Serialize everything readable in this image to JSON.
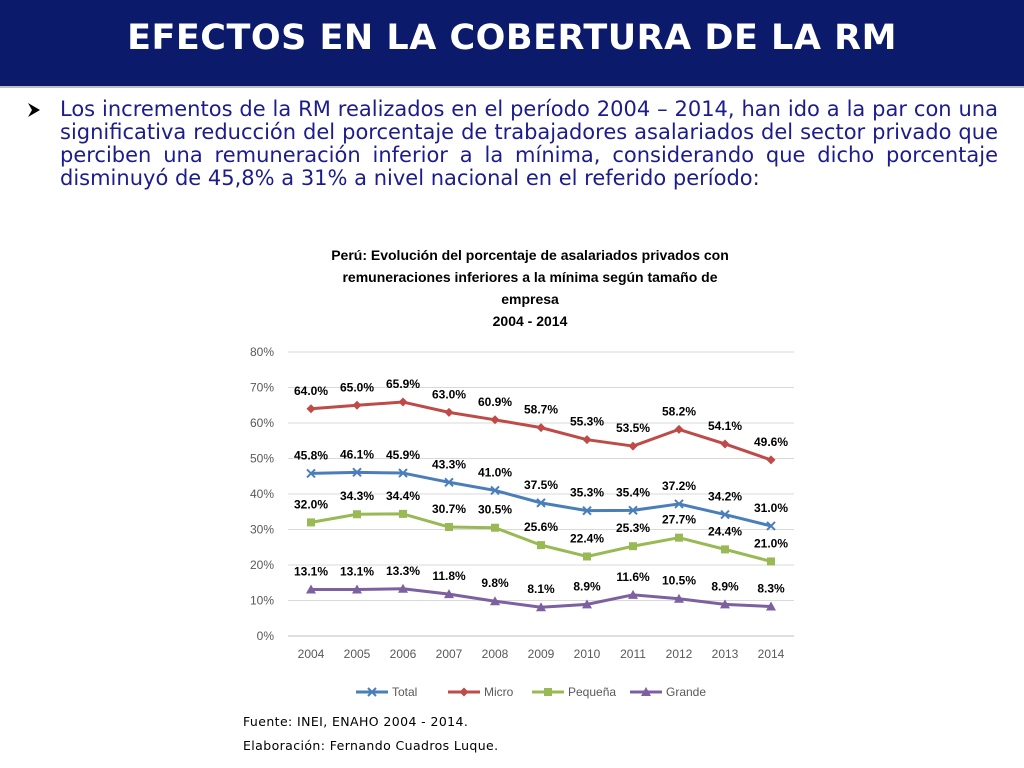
{
  "header": {
    "title": "EFECTOS EN LA COBERTURA DE LA RM"
  },
  "bullet": {
    "text": "Los incrementos de la RM realizados en el período 2004 – 2014, han ido a la par con una significativa reducción del porcentaje de trabajadores asalariados del sector privado que perciben una remuneración inferior a la mínima, considerando que dicho porcentaje disminuyó de 45,8% a 31% a nivel nacional en el referido período:"
  },
  "chart_data": {
    "type": "line",
    "title": [
      "Perú: Evolución del porcentaje de asalariados privados con",
      "remuneraciones inferiores a la mínima según tamaño de",
      "empresa",
      "2004 - 2014"
    ],
    "xlabel": "",
    "ylabel": "",
    "x": [
      "2004",
      "2005",
      "2006",
      "2007",
      "2008",
      "2009",
      "2010",
      "2011",
      "2012",
      "2013",
      "2014"
    ],
    "ylim": [
      0,
      80
    ],
    "yticks": [
      "0%",
      "10%",
      "20%",
      "30%",
      "40%",
      "50%",
      "60%",
      "70%",
      "80%"
    ],
    "grid": true,
    "legend": "bottom",
    "series": [
      {
        "name": "Total",
        "color": "#4a7ebb",
        "marker": "x",
        "values": [
          45.8,
          46.1,
          45.9,
          43.3,
          41.0,
          37.5,
          35.3,
          35.4,
          37.2,
          34.2,
          31.0
        ],
        "labels": [
          "45.8%",
          "46.1%",
          "45.9%",
          "43.3%",
          "41.0%",
          "37.5%",
          "35.3%",
          "35.4%",
          "37.2%",
          "34.2%",
          "31.0%"
        ]
      },
      {
        "name": "Micro",
        "color": "#be4b48",
        "marker": "diamond",
        "values": [
          64.0,
          65.0,
          65.9,
          63.0,
          60.9,
          58.7,
          55.3,
          53.5,
          58.2,
          54.1,
          49.6
        ],
        "labels": [
          "64.0%",
          "65.0%",
          "65.9%",
          "63.0%",
          "60.9%",
          "58.7%",
          "55.3%",
          "53.5%",
          "58.2%",
          "54.1%",
          "49.6%"
        ]
      },
      {
        "name": "Pequeña",
        "color": "#98b954",
        "marker": "square",
        "values": [
          32.0,
          34.3,
          34.4,
          30.7,
          30.5,
          25.6,
          22.4,
          25.3,
          27.7,
          24.4,
          21.0
        ],
        "labels": [
          "32.0%",
          "34.3%",
          "34.4%",
          "30.7%",
          "30.5%",
          "25.6%",
          "22.4%",
          "25.3%",
          "27.7%",
          "24.4%",
          "21.0%"
        ]
      },
      {
        "name": "Grande",
        "color": "#7d60a0",
        "marker": "triangle",
        "values": [
          13.1,
          13.1,
          13.3,
          11.8,
          9.8,
          8.1,
          8.9,
          11.6,
          10.5,
          8.9,
          8.3
        ],
        "labels": [
          "13.1%",
          "13.1%",
          "13.3%",
          "11.8%",
          "9.8%",
          "8.1%",
          "8.9%",
          "11.6%",
          "10.5%",
          "8.9%",
          "8.3%"
        ]
      }
    ]
  },
  "notes": {
    "source": "Fuente: INEI, ENAHO 2004 - 2014.",
    "author": "Elaboración: Fernando Cuadros Luque."
  },
  "colors": {
    "header_bg": "#0b1a6b",
    "body_text": "#1c1c8c"
  }
}
